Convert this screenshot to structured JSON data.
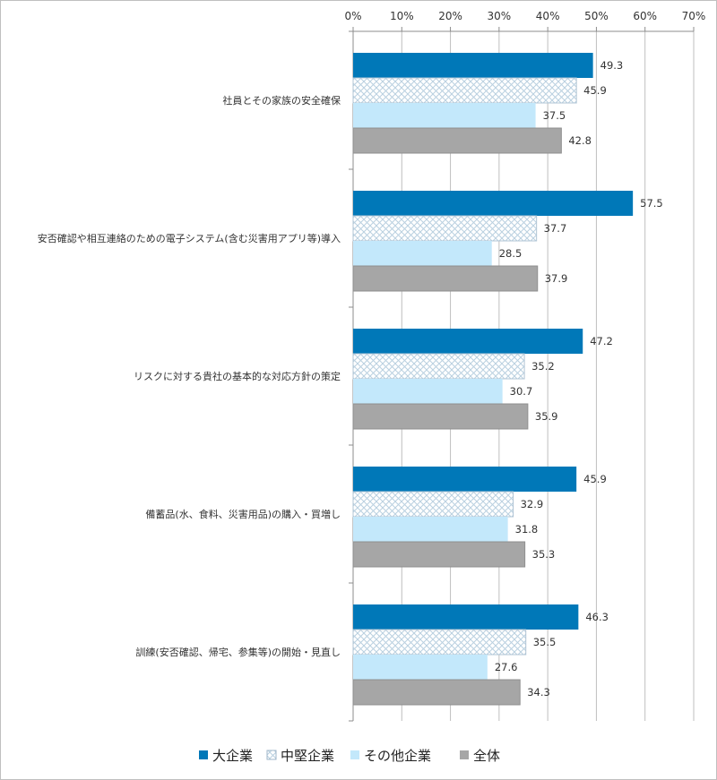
{
  "chart_data": {
    "type": "bar",
    "orientation": "horizontal",
    "title": "",
    "xlabel": "",
    "ylabel": "",
    "xlim": [
      0,
      70
    ],
    "x_ticks": [
      "0%",
      "10%",
      "20%",
      "30%",
      "40%",
      "50%",
      "60%",
      "70%"
    ],
    "x_tick_values": [
      0,
      10,
      20,
      30,
      40,
      50,
      60,
      70
    ],
    "grid": true,
    "legend_position": "bottom",
    "categories": [
      "社員とその家族の安全確保",
      "安否確認や相互連絡のための電子システム(含む災害用アプリ等)導入",
      "リスクに対する貴社の基本的な対応方針の策定",
      "備蓄品(水、食料、災害用品)の購入・買増し",
      "訓練(安否確認、帰宅、参集等)の開始・見直し"
    ],
    "series": [
      {
        "name": "大企業",
        "color": "#0078b8",
        "pattern": "solid",
        "values": [
          49.3,
          57.5,
          47.2,
          45.9,
          46.3
        ]
      },
      {
        "name": "中堅企業",
        "color": "#c8dcea",
        "pattern": "crosshatch",
        "values": [
          45.9,
          37.7,
          35.2,
          32.9,
          35.5
        ]
      },
      {
        "name": "その他企業",
        "color": "#c3e8fb",
        "pattern": "solid",
        "values": [
          37.5,
          28.5,
          30.7,
          31.8,
          27.6
        ]
      },
      {
        "name": "全体",
        "color": "#a6a6a6",
        "pattern": "solid",
        "values": [
          42.8,
          37.9,
          35.9,
          35.3,
          34.3
        ]
      }
    ]
  }
}
